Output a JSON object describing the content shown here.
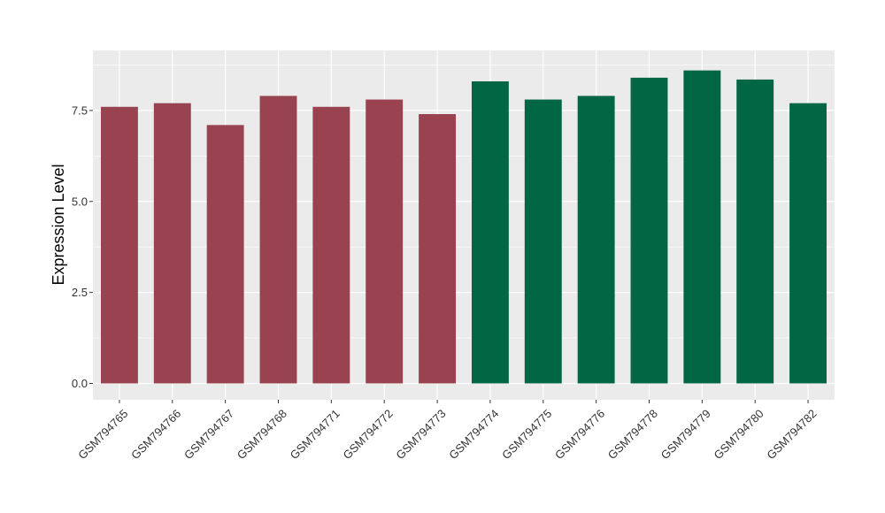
{
  "chart_data": {
    "type": "bar",
    "title": "",
    "xlabel": "",
    "ylabel": "Expression Level",
    "ylim": [
      -0.45,
      9.15
    ],
    "yticks": [
      0.0,
      2.5,
      5.0,
      7.5
    ],
    "ytick_labels": [
      "0.0",
      "2.5",
      "5.0",
      "7.5"
    ],
    "grid": true,
    "legend": "none",
    "colors": {
      "panel": "#EBEBEB",
      "grid_major": "#FFFFFF",
      "group1": "#994350",
      "group2": "#006644"
    },
    "categories": [
      "GSM794765",
      "GSM794766",
      "GSM794767",
      "GSM794768",
      "GSM794771",
      "GSM794772",
      "GSM794773",
      "GSM794774",
      "GSM794775",
      "GSM794776",
      "GSM794778",
      "GSM794779",
      "GSM794780",
      "GSM794782"
    ],
    "values": [
      7.6,
      7.7,
      7.1,
      7.9,
      7.6,
      7.8,
      7.4,
      8.3,
      7.8,
      7.9,
      8.4,
      8.6,
      8.35,
      7.7
    ],
    "bar_colors": [
      "#994350",
      "#994350",
      "#994350",
      "#994350",
      "#994350",
      "#994350",
      "#994350",
      "#006644",
      "#006644",
      "#006644",
      "#006644",
      "#006644",
      "#006644",
      "#006644"
    ]
  }
}
